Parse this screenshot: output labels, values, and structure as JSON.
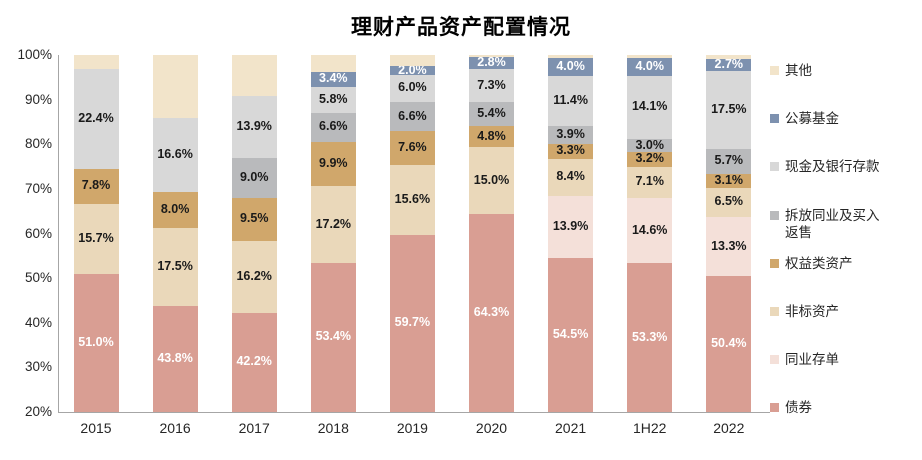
{
  "title": "理财产品资产配置情况",
  "chart_data": {
    "type": "bar",
    "stacked": true,
    "title": "理财产品资产配置情况",
    "xlabel": "",
    "ylabel": "",
    "ylim": [
      20,
      100
    ],
    "grid": false,
    "legend_position": "right",
    "y_tick_labels": [
      "100%",
      "90%",
      "80%",
      "70%",
      "60%",
      "50%",
      "40%",
      "30%",
      "20%"
    ],
    "categories": [
      "2015",
      "2016",
      "2017",
      "2018",
      "2019",
      "2020",
      "2021",
      "1H22",
      "2022"
    ],
    "series": [
      {
        "id": "bonds",
        "name": "债券",
        "color": "#D99E93",
        "label_color": "#FFFFFF",
        "show_labels": true,
        "values": [
          51.0,
          43.8,
          42.2,
          53.4,
          59.7,
          64.3,
          54.5,
          53.3,
          50.4
        ]
      },
      {
        "id": "interbank-cds",
        "name": "同业存单",
        "color": "#F4E0D9",
        "label_color": "#1A1A1A",
        "show_labels": true,
        "values": [
          0,
          0,
          0,
          0,
          0,
          0,
          13.9,
          14.6,
          13.3
        ]
      },
      {
        "id": "non-standard-assets",
        "name": "非标资产",
        "color": "#EAD8BA",
        "label_color": "#1A1A1A",
        "show_labels": true,
        "values": [
          15.7,
          17.5,
          16.2,
          17.2,
          15.6,
          15.0,
          8.4,
          7.1,
          6.5
        ]
      },
      {
        "id": "equity-assets",
        "name": "权益类资产",
        "color": "#D0A76B",
        "label_color": "#1A1A1A",
        "show_labels": true,
        "values": [
          7.8,
          8.0,
          9.5,
          9.9,
          7.6,
          4.8,
          3.3,
          3.2,
          3.1
        ]
      },
      {
        "id": "interbank-reverse-repo",
        "name": "拆放同业及买入返售",
        "color": "#B9BABC",
        "label_color": "#1A1A1A",
        "show_labels": true,
        "values": [
          0,
          0,
          9.0,
          6.6,
          6.6,
          5.4,
          3.9,
          3.0,
          5.7
        ]
      },
      {
        "id": "cash-bank-deposits",
        "name": "现金及银行存款",
        "color": "#D8D8D8",
        "label_color": "#1A1A1A",
        "show_labels": true,
        "values": [
          22.4,
          16.6,
          13.9,
          5.8,
          6.0,
          7.3,
          11.4,
          14.1,
          17.5
        ]
      },
      {
        "id": "public-funds",
        "name": "公募基金",
        "color": "#7D91AF",
        "label_color": "#FFFFFF",
        "show_labels": true,
        "values": [
          0,
          0,
          0,
          3.4,
          2.0,
          2.8,
          4.0,
          4.0,
          2.7
        ]
      },
      {
        "id": "other",
        "name": "其他",
        "color": "#F2E4CA",
        "label_color": "#1A1A1A",
        "show_labels": false,
        "values": [
          3.1,
          14.1,
          9.2,
          3.7,
          2.5,
          0.4,
          0.6,
          0.7,
          0.8
        ]
      }
    ]
  }
}
